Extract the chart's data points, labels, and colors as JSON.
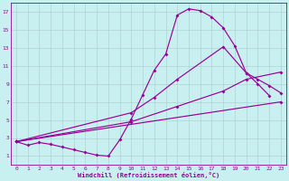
{
  "bg_color": "#c8f0f0",
  "line_color": "#990099",
  "grid_color": "#aacccc",
  "xlabel": "Windchill (Refroidissement éolien,°C)",
  "xlim": [
    -0.5,
    23.5
  ],
  "ylim": [
    0,
    18
  ],
  "xticks": [
    0,
    1,
    2,
    3,
    4,
    5,
    6,
    7,
    8,
    9,
    10,
    11,
    12,
    13,
    14,
    15,
    16,
    17,
    18,
    19,
    20,
    21,
    22,
    23
  ],
  "yticks": [
    1,
    3,
    5,
    7,
    9,
    11,
    13,
    15,
    17
  ],
  "curve1_x": [
    0,
    1,
    2,
    3,
    4,
    5,
    6,
    7,
    8,
    9,
    10,
    11,
    12,
    13,
    14,
    15,
    16,
    17,
    18,
    19,
    20,
    21,
    22
  ],
  "curve1_y": [
    2.6,
    2.2,
    2.5,
    2.3,
    2.0,
    1.7,
    1.4,
    1.1,
    1.0,
    2.8,
    5.1,
    7.8,
    10.5,
    12.3,
    16.6,
    17.3,
    17.1,
    16.4,
    15.2,
    13.2,
    10.2,
    9.0,
    7.7
  ],
  "curve2_x": [
    0,
    10,
    12,
    14,
    18,
    20,
    21,
    22,
    23
  ],
  "curve2_y": [
    2.6,
    5.8,
    7.5,
    9.5,
    13.1,
    10.2,
    9.5,
    8.8,
    8.0
  ],
  "curve3_x": [
    0,
    10,
    14,
    18,
    20,
    23
  ],
  "curve3_y": [
    2.6,
    4.8,
    6.5,
    8.2,
    9.5,
    10.3
  ],
  "curve4_x": [
    0,
    23
  ],
  "curve4_y": [
    2.6,
    7.0
  ]
}
